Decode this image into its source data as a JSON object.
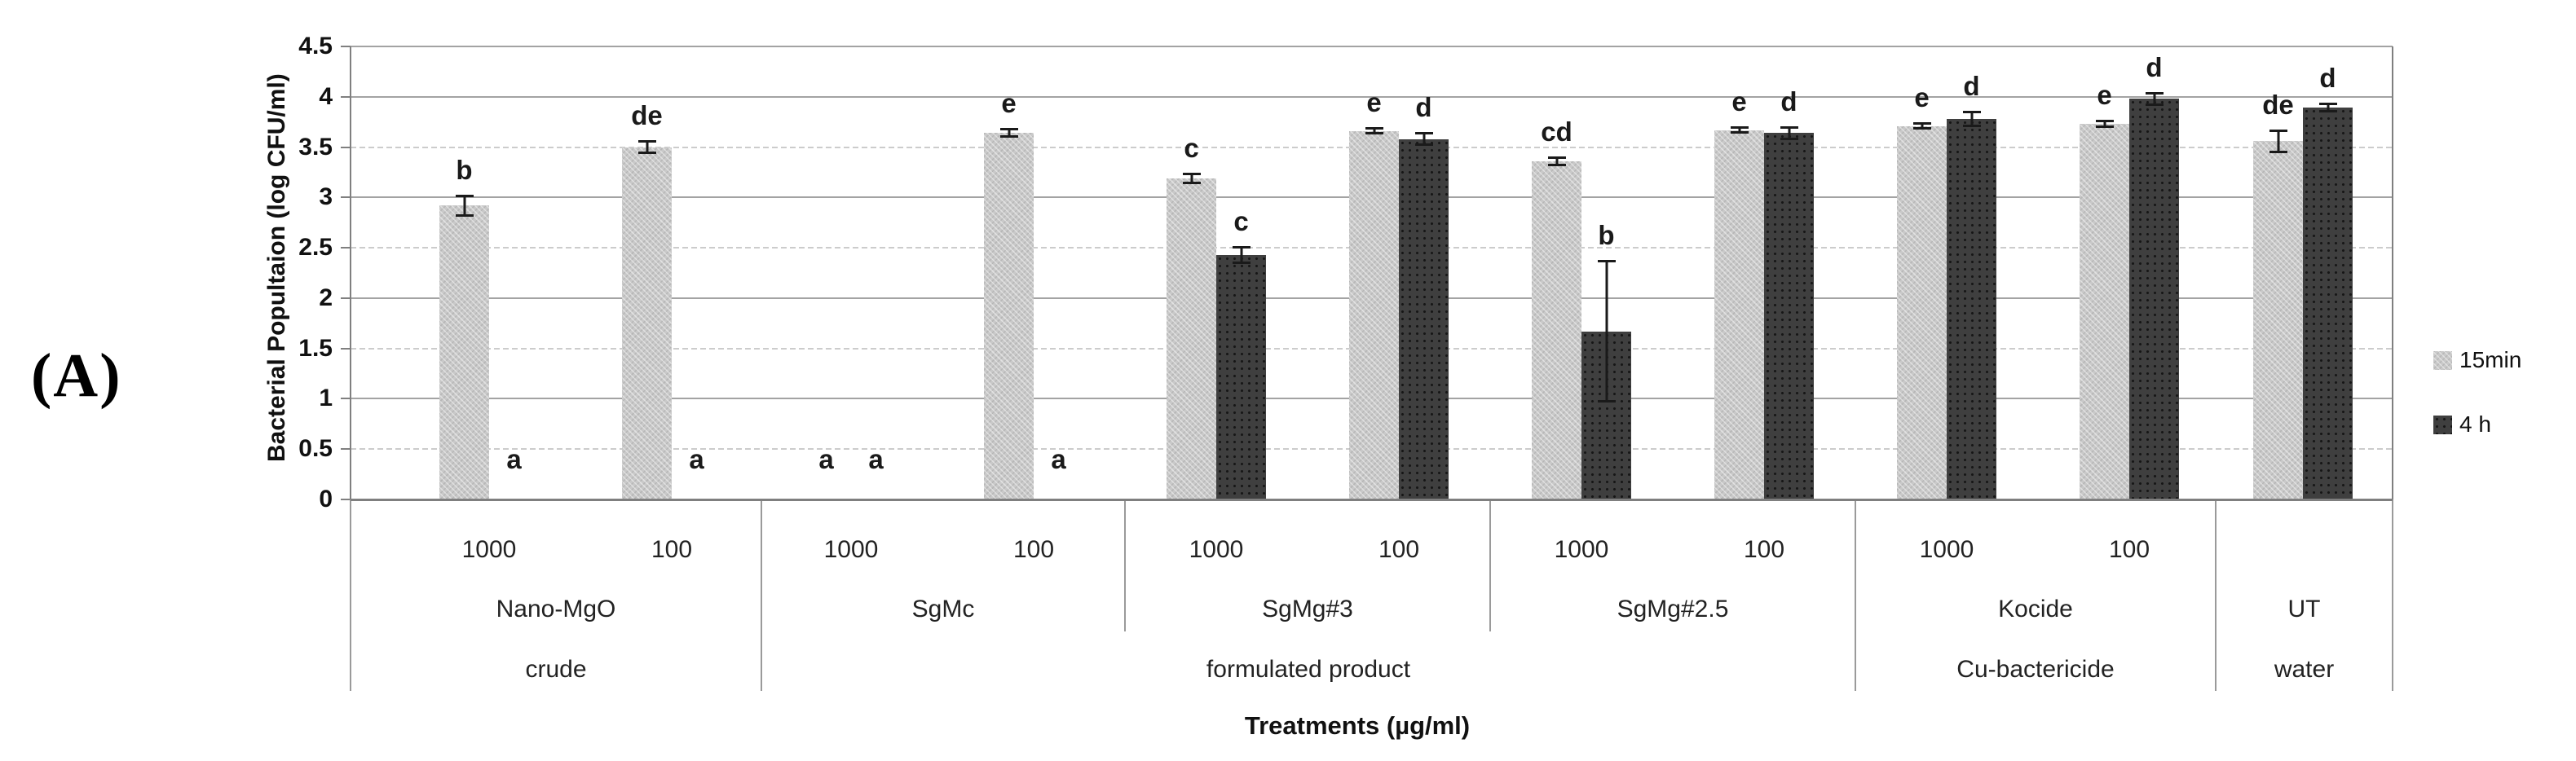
{
  "panel_label": "(A)",
  "chart_data": {
    "type": "bar",
    "title": "",
    "ylabel": "Bacterial Popultaion (log CFU/ml)",
    "xlabel": "Treatments (µg/ml)",
    "ylim": [
      0,
      4.5
    ],
    "ytick_step": 0.5,
    "yticks": [
      "0",
      "0.5",
      "1",
      "1.5",
      "2",
      "2.5",
      "3",
      "3.5",
      "4",
      "4.5"
    ],
    "grid": true,
    "legend_position": "right",
    "legend": [
      {
        "name": "15min",
        "color": "#c9c9c9"
      },
      {
        "name": "4 h",
        "color": "#3f3f3f"
      }
    ],
    "groups": [
      {
        "treatment": "Nano-MgO",
        "category": "crude",
        "clusters": [
          {
            "conc": "1000",
            "bars": [
              {
                "series": "15min",
                "value": 2.92,
                "err": 0.1,
                "letter": "b"
              },
              {
                "series": "4 h",
                "value": 0,
                "err": 0,
                "letter": "a"
              }
            ]
          },
          {
            "conc": "100",
            "bars": [
              {
                "series": "15min",
                "value": 3.5,
                "err": 0.06,
                "letter": "de"
              },
              {
                "series": "4 h",
                "value": 0,
                "err": 0,
                "letter": "a"
              }
            ]
          }
        ]
      },
      {
        "treatment": "SgMc",
        "category": "formulated product",
        "clusters": [
          {
            "conc": "1000",
            "bars": [
              {
                "series": "15min",
                "value": 0,
                "err": 0,
                "letter": "a"
              },
              {
                "series": "4 h",
                "value": 0,
                "err": 0,
                "letter": "a"
              }
            ]
          },
          {
            "conc": "100",
            "bars": [
              {
                "series": "15min",
                "value": 3.64,
                "err": 0.04,
                "letter": "e"
              },
              {
                "series": "4 h",
                "value": 0,
                "err": 0,
                "letter": "a"
              }
            ]
          }
        ]
      },
      {
        "treatment": "SgMg#3",
        "category": "formulated product",
        "clusters": [
          {
            "conc": "1000",
            "bars": [
              {
                "series": "15min",
                "value": 3.19,
                "err": 0.05,
                "letter": "c"
              },
              {
                "series": "4 h",
                "value": 2.43,
                "err": 0.08,
                "letter": "c"
              }
            ]
          },
          {
            "conc": "100",
            "bars": [
              {
                "series": "15min",
                "value": 3.66,
                "err": 0.03,
                "letter": "e"
              },
              {
                "series": "4 h",
                "value": 3.58,
                "err": 0.06,
                "letter": "d"
              }
            ]
          }
        ]
      },
      {
        "treatment": "SgMg#2.5",
        "category": "formulated product",
        "clusters": [
          {
            "conc": "1000",
            "bars": [
              {
                "series": "15min",
                "value": 3.36,
                "err": 0.04,
                "letter": "cd"
              },
              {
                "series": "4 h",
                "value": 1.67,
                "err": 0.7,
                "letter": "b"
              }
            ]
          },
          {
            "conc": "100",
            "bars": [
              {
                "series": "15min",
                "value": 3.67,
                "err": 0.03,
                "letter": "e"
              },
              {
                "series": "4 h",
                "value": 3.64,
                "err": 0.06,
                "letter": "d"
              }
            ]
          }
        ]
      },
      {
        "treatment": "Kocide",
        "category": "Cu-bactericide",
        "clusters": [
          {
            "conc": "1000",
            "bars": [
              {
                "series": "15min",
                "value": 3.71,
                "err": 0.03,
                "letter": "e"
              },
              {
                "series": "4 h",
                "value": 3.78,
                "err": 0.07,
                "letter": "d"
              }
            ]
          },
          {
            "conc": "100",
            "bars": [
              {
                "series": "15min",
                "value": 3.73,
                "err": 0.03,
                "letter": "e"
              },
              {
                "series": "4 h",
                "value": 3.98,
                "err": 0.06,
                "letter": "d"
              }
            ]
          }
        ]
      },
      {
        "treatment": "UT",
        "category": "water",
        "clusters": [
          {
            "conc": "",
            "bars": [
              {
                "series": "15min",
                "value": 3.56,
                "err": 0.11,
                "letter": "de"
              },
              {
                "series": "4 h",
                "value": 3.89,
                "err": 0.04,
                "letter": "d"
              }
            ]
          }
        ]
      }
    ],
    "category_spans": [
      {
        "label": "crude",
        "from_group": 0,
        "to_group": 0
      },
      {
        "label": "formulated product",
        "from_group": 1,
        "to_group": 3
      },
      {
        "label": "Cu-bactericide",
        "from_group": 4,
        "to_group": 4
      },
      {
        "label": "water",
        "from_group": 5,
        "to_group": 5
      }
    ]
  }
}
